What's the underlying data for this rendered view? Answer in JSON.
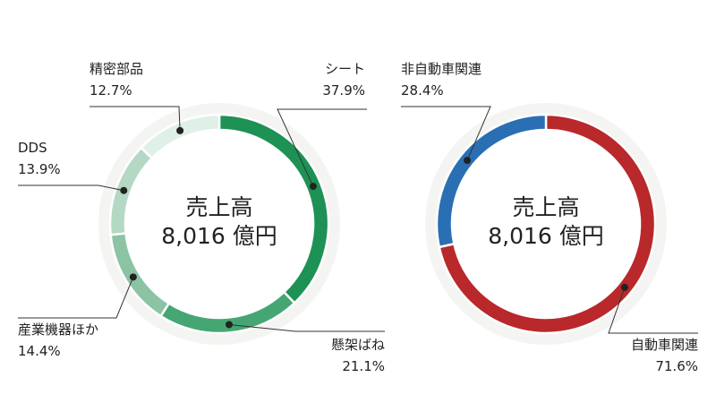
{
  "chart_data": [
    {
      "type": "pie",
      "center_label": [
        "売上高",
        "8,016 億円"
      ],
      "slices": [
        {
          "label": "シート",
          "value": 37.9,
          "value_label": "37.9%",
          "color": "#1e9155"
        },
        {
          "label": "懸架ばね",
          "value": 21.1,
          "value_label": "21.1%",
          "color": "#46a673"
        },
        {
          "label": "産業機器ほか",
          "value": 14.4,
          "value_label": "14.4%",
          "color": "#8cc3a5"
        },
        {
          "label": "DDS",
          "value": 13.9,
          "value_label": "13.9%",
          "color": "#b5d8c5"
        },
        {
          "label": "精密部品",
          "value": 12.7,
          "value_label": "12.7%",
          "color": "#dff0e6"
        }
      ]
    },
    {
      "type": "pie",
      "center_label": [
        "売上高",
        "8,016 億円"
      ],
      "slices": [
        {
          "label": "自動車関連",
          "value": 71.6,
          "value_label": "71.6%",
          "color": "#b9282b"
        },
        {
          "label": "非自動車関連",
          "value": 28.4,
          "value_label": "28.4%",
          "color": "#2a6fb3"
        }
      ]
    }
  ]
}
